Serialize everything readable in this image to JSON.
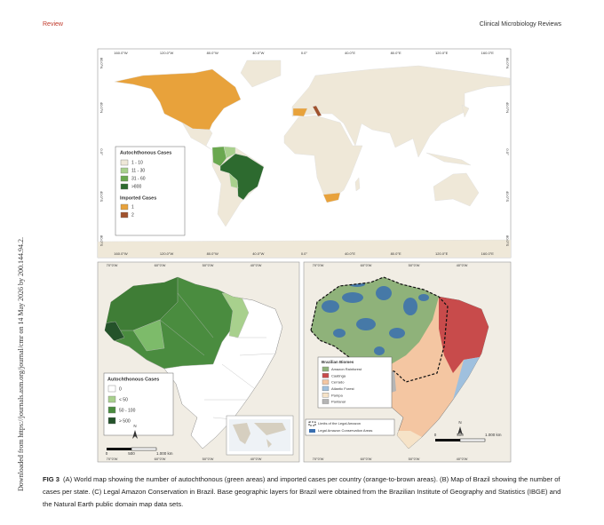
{
  "header": {
    "left": "Review",
    "right": "Clinical Microbiology Reviews"
  },
  "side_note": "Downloaded from https://journals.asm.org/journal/cmr on 14 May 2026 by 200.144.94.2.",
  "figure": {
    "panel_a": {
      "lon_labels": [
        "160.0°W",
        "120.0°W",
        "80.0°W",
        "40.0°W",
        "0.0°",
        "40.0°E",
        "80.0°E",
        "120.0°E",
        "160.0°E"
      ],
      "lat_labels": [
        "80.0°N",
        "40.0°N",
        "0.0°",
        "40.0°S",
        "80.0°S"
      ],
      "legend": {
        "title": "Autochthonous Cases",
        "items": [
          "1 - 10",
          "11 - 30",
          "31 - 60",
          ">800"
        ],
        "imported_title": "Imported Cases",
        "imported_items": [
          "1",
          "2"
        ]
      }
    },
    "panel_b": {
      "lon_labels": [
        "70°0'W",
        "60°0'W",
        "50°0'W",
        "40°0'W"
      ],
      "legend": {
        "title": "Autochthonous Cases",
        "items": [
          "0",
          "< 50",
          "50 - 100",
          "> 500"
        ]
      },
      "north": "N",
      "scale": [
        "0",
        "500",
        "1.000 km"
      ]
    },
    "panel_c": {
      "lon_labels": [
        "70°0'W",
        "60°0'W",
        "50°0'W",
        "40°0'W"
      ],
      "legend": {
        "title": "Brazilian Biomes",
        "items": [
          "Amazon Rainforest",
          "Caatinga",
          "Cerrado",
          "Atlantic Forest",
          "Pampa",
          "Pantanal"
        ]
      },
      "boundary_legend": [
        "Limits of the Legal Amazon",
        "Legal Amazon Conservation Areas"
      ],
      "north": "N",
      "scale": [
        "0",
        "500",
        "1.000 km"
      ]
    }
  },
  "caption": {
    "label": "FIG 3",
    "text": "(A) World map showing the number of autochthonous (green areas) and imported cases per country (orange-to-brown areas). (B) Map of Brazil showing the number of cases per state. (C) Legal Amazon Conservation in Brazil. Base geographic layers for Brazil were obtained from the Brazilian Institute of Geography and Statistics (IBGE) and the Natural Earth public domain map data sets."
  }
}
